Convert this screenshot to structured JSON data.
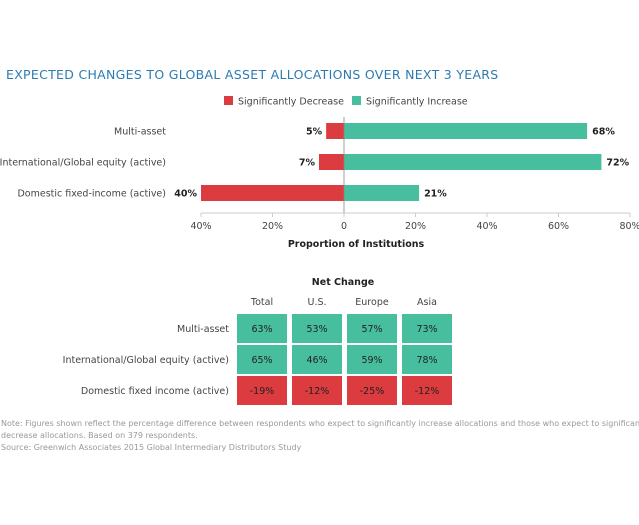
{
  "chart_data": [
    {
      "type": "bar",
      "orientation": "horizontal-diverging",
      "title": "EXPECTED CHANGES TO GLOBAL ASSET ALLOCATIONS OVER NEXT 3 YEARS",
      "categories": [
        "Multi-asset",
        "International/Global equity (active)",
        "Domestic fixed-income (active)"
      ],
      "series": [
        {
          "name": "Significantly Decrease",
          "values": [
            5,
            7,
            40
          ],
          "labels": [
            "5%",
            "7%",
            "40%"
          ],
          "color": "#dc3b3f"
        },
        {
          "name": "Significantly Increase",
          "values": [
            68,
            72,
            21
          ],
          "labels": [
            "68%",
            "72%",
            "21%"
          ],
          "color": "#47bf9e"
        }
      ],
      "xlabel": "Proportion of Institutions",
      "xlim": [
        -40,
        80
      ],
      "xticks": [
        -40,
        -20,
        0,
        20,
        40,
        60,
        80
      ],
      "xtick_labels": [
        "40%",
        "20%",
        "0",
        "20%",
        "40%",
        "60%",
        "80%"
      ],
      "legend": "top-center",
      "grid": false
    },
    {
      "type": "table",
      "title": "Net Change",
      "columns": [
        "Total",
        "U.S.",
        "Europe",
        "Asia"
      ],
      "rows": [
        {
          "label": "Multi-asset",
          "values": [
            "63%",
            "53%",
            "57%",
            "73%"
          ]
        },
        {
          "label": "International/Global equity (active)",
          "values": [
            "65%",
            "46%",
            "59%",
            "78%"
          ]
        },
        {
          "label": "Domestic fixed income (active)",
          "values": [
            "-19%",
            "-12%",
            "-25%",
            "-12%"
          ]
        }
      ],
      "positive_color": "#47bf9e",
      "negative_color": "#dc3b3f"
    }
  ],
  "notes": [
    "Note: Figures shown reflect the percentage difference between respondents who expect to significantly increase allocations and those who expect to significantly",
    "decrease allocations. Based on 379 respondents.",
    "Source: Greenwich Associates 2015 Global Intermediary Distributors Study"
  ]
}
